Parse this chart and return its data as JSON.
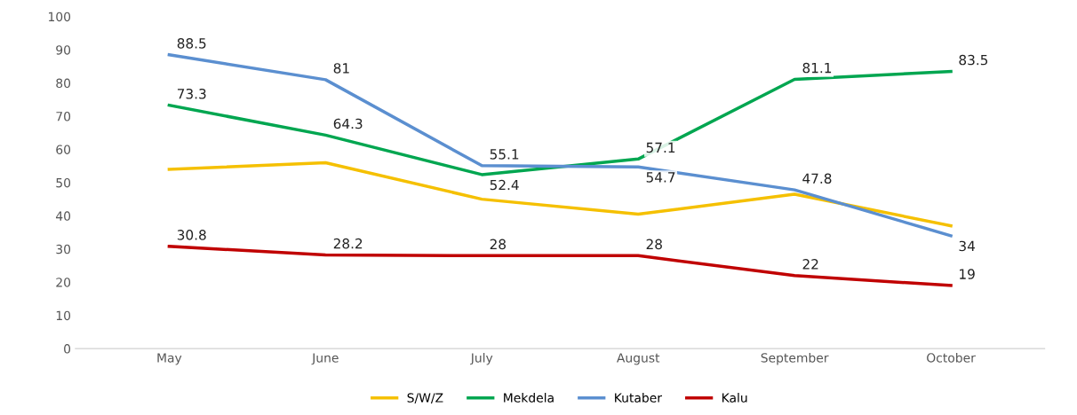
{
  "chart_data": {
    "type": "line",
    "categories": [
      "May",
      "June",
      "July",
      "August",
      "September",
      "October"
    ],
    "ylim": [
      0,
      100
    ],
    "yticks": [
      0,
      10,
      20,
      30,
      40,
      50,
      60,
      70,
      80,
      90,
      100
    ],
    "grid": false,
    "legend": "bottom",
    "marker": "none",
    "line_style": "solid",
    "series": [
      {
        "name": "S/W/Z",
        "color": "#f5c000",
        "values": [
          54,
          56,
          45,
          40.5,
          46.5,
          37
        ]
      },
      {
        "name": "Mekdela",
        "color": "#00a650",
        "values": [
          73.3,
          64.3,
          52.4,
          57.1,
          81.1,
          83.5
        ],
        "value_labels": [
          "73.3",
          "64.3",
          "52.4",
          "57.1",
          "81.1",
          "83.5"
        ]
      },
      {
        "name": "Kutaber",
        "color": "#5b8fd0",
        "values": [
          88.5,
          81,
          55.1,
          54.7,
          47.8,
          34
        ],
        "value_labels": [
          "88.5",
          "81",
          "55.1",
          "54.7",
          "47.8",
          "34"
        ]
      },
      {
        "name": "Kalu",
        "color": "#c00000",
        "values": [
          30.8,
          28.2,
          28,
          28,
          22,
          19
        ],
        "value_labels": [
          "30.8",
          "28.2",
          "28",
          "28",
          "22",
          "19"
        ]
      }
    ]
  }
}
